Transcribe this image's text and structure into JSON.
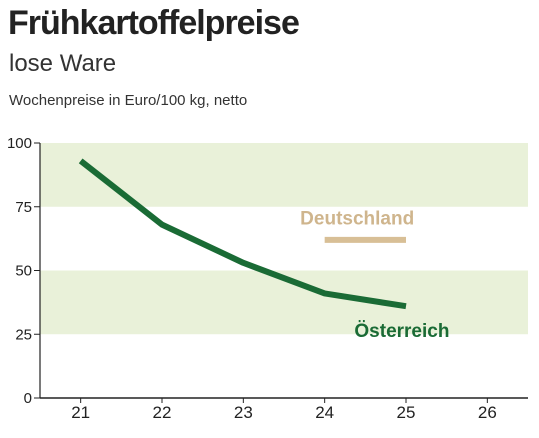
{
  "header": {
    "title": "Frühkartoffelpreise",
    "subtitle": "lose Ware",
    "unit_label": "Wochenpreise in Euro/100 kg, netto"
  },
  "chart_data": {
    "type": "line",
    "title": "Frühkartoffelpreise",
    "subtitle": "lose Ware",
    "ylabel": "Wochenpreise in Euro/100 kg, netto",
    "xlabel": "",
    "x": [
      21,
      22,
      23,
      24,
      25
    ],
    "x_ticks": [
      "21",
      "22",
      "23",
      "24",
      "25",
      "26"
    ],
    "x_range": [
      20.5,
      26.5
    ],
    "y_ticks": [
      "0",
      "25",
      "50",
      "75",
      "100"
    ],
    "ylim": [
      0,
      100
    ],
    "bands": [
      [
        25,
        50
      ],
      [
        75,
        100
      ]
    ],
    "series": [
      {
        "name": "Österreich",
        "color": "#1a6b35",
        "values": [
          93,
          68,
          53,
          41,
          36
        ]
      },
      {
        "name": "Deutschland",
        "color": "#d8bf96",
        "values": [
          null,
          null,
          null,
          62,
          62
        ]
      }
    ],
    "colors": {
      "band": "#e9f1d9",
      "axis": "#222222",
      "oesterreich_label": "#1a6b35",
      "deutschland_label": "#cfb58d"
    }
  }
}
